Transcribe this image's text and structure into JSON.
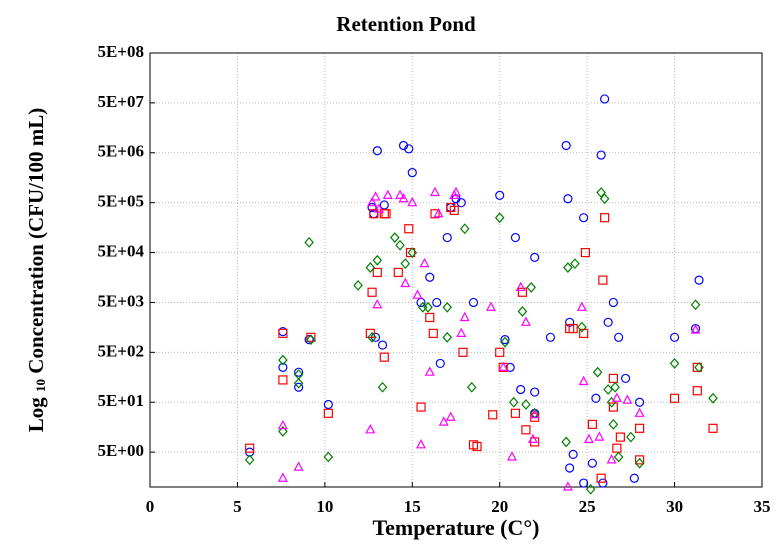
{
  "chart_data": {
    "type": "scatter",
    "title": "Retention Pond",
    "xlabel": "Temperature (C°)",
    "ylabel_prefix": "Log",
    "ylabel_subscript": "10",
    "ylabel_rest": "Concentration (CFU/100 mL)",
    "log_y": true,
    "grid": true,
    "xlim": [
      0,
      35
    ],
    "xticks": [
      0,
      5,
      10,
      15,
      20,
      25,
      30,
      35
    ],
    "ylim": [
      1,
      500000000
    ],
    "yticks": [
      {
        "value": 5,
        "label": "5E+00"
      },
      {
        "value": 50,
        "label": "5E+01"
      },
      {
        "value": 500,
        "label": "5E+02"
      },
      {
        "value": 5000,
        "label": "5E+03"
      },
      {
        "value": 50000,
        "label": "5E+04"
      },
      {
        "value": 500000,
        "label": "5E+05"
      },
      {
        "value": 5000000,
        "label": "5E+06"
      },
      {
        "value": 50000000,
        "label": "5E+07"
      },
      {
        "value": 500000000,
        "label": "5E+08"
      }
    ],
    "series": [
      {
        "color": "#0000ff",
        "marker": "circle",
        "x": [
          5.7,
          7.6,
          7.6,
          8.5,
          8.5,
          9.1,
          10.2,
          12.7,
          12.8,
          12.9,
          13.0,
          13.3,
          13.4,
          14.5,
          14.8,
          15.0,
          15.5,
          16.0,
          16.4,
          16.6,
          17.0,
          17.2,
          17.5,
          17.8,
          18.5,
          20.0,
          20.3,
          20.6,
          20.9,
          21.2,
          22.0,
          22.0,
          22.0,
          22.9,
          23.8,
          23.9,
          24.0,
          24.0,
          24.2,
          24.8,
          24.8,
          25.3,
          25.5,
          25.8,
          25.9,
          26.0,
          26.2,
          26.5,
          26.8,
          27.2,
          27.7,
          28.0,
          30.0,
          31.2,
          31.4
        ],
        "values": [
          5,
          1300,
          250,
          200,
          100,
          900,
          45,
          400000,
          300000,
          1000,
          5500000,
          700,
          450000,
          7000000,
          6000000,
          2000000,
          5000,
          16000,
          5000,
          300,
          100000,
          400000,
          600000,
          500000,
          5000,
          700000,
          900,
          250,
          100000,
          90,
          40000,
          80,
          30,
          1000,
          7000000,
          600000,
          2000,
          2.4,
          4.5,
          250000,
          1.2,
          3,
          60,
          4500000,
          1.2,
          60000000,
          2000,
          5000,
          1000,
          150,
          1.5,
          50,
          1000,
          1500,
          14000
        ]
      },
      {
        "color": "#ff0000",
        "marker": "square",
        "x": [
          5.7,
          7.6,
          7.6,
          9.2,
          10.2,
          12.6,
          12.7,
          12.8,
          13.0,
          13.4,
          13.5,
          13.4,
          14.2,
          14.8,
          14.9,
          15.5,
          16.0,
          16.2,
          16.3,
          17.2,
          17.4,
          17.9,
          18.5,
          18.7,
          19.6,
          20.0,
          20.2,
          20.9,
          21.3,
          21.5,
          22.0,
          22.0,
          24.0,
          24.2,
          24.8,
          24.9,
          25.3,
          25.9,
          26.0,
          25.8,
          26.5,
          26.5,
          26.7,
          26.9,
          28.0,
          28.0,
          30.0,
          31.3,
          31.3,
          32.2
        ],
        "values": [
          6,
          1200,
          140,
          1000,
          30,
          1200,
          8000,
          300000,
          20000,
          300000,
          300000,
          400,
          20000,
          150000,
          50000,
          40,
          2500,
          1200,
          300000,
          400000,
          350000,
          500,
          7,
          6.5,
          28,
          500,
          250,
          30,
          8000,
          14,
          25,
          8,
          1500,
          1500,
          1200,
          50000,
          18,
          14000,
          250000,
          1.5,
          150,
          40,
          6,
          10,
          15,
          3.5,
          60,
          250,
          85,
          15
        ]
      },
      {
        "color": "#008000",
        "marker": "diamond",
        "x": [
          5.7,
          7.6,
          7.6,
          8.5,
          8.5,
          9.2,
          9.1,
          10.2,
          11.9,
          12.6,
          12.7,
          13.0,
          13.3,
          14.0,
          14.3,
          14.6,
          15.0,
          15.6,
          15.9,
          17.0,
          17.0,
          18.0,
          18.4,
          20.0,
          20.3,
          20.8,
          21.3,
          21.5,
          21.8,
          22.0,
          23.9,
          23.8,
          24.3,
          24.7,
          25.2,
          25.6,
          25.8,
          26.0,
          26.2,
          26.4,
          26.5,
          26.6,
          26.8,
          27.5,
          28.0,
          30.0,
          31.2,
          31.4,
          32.2
        ],
        "values": [
          3.5,
          350,
          13,
          120,
          180,
          900,
          80000,
          4,
          11000,
          25000,
          1000,
          35000,
          100,
          100000,
          70000,
          30000,
          50000,
          4000,
          4000,
          1000,
          4000,
          150000,
          100,
          250000,
          800,
          50,
          3300,
          45,
          10000,
          30,
          25000,
          8,
          30000,
          1600,
          0.9,
          200,
          800000,
          600000,
          90,
          50,
          18,
          100,
          4,
          10,
          3,
          300,
          4500,
          250,
          60
        ]
      },
      {
        "color": "#ff00ff",
        "marker": "triangle",
        "x": [
          7.6,
          7.6,
          8.5,
          12.6,
          12.7,
          12.9,
          13.0,
          13.1,
          13.6,
          14.3,
          14.5,
          14.6,
          15.0,
          15.3,
          15.5,
          15.7,
          16.0,
          16.3,
          16.5,
          16.8,
          17.2,
          17.4,
          17.5,
          17.8,
          18.0,
          19.5,
          20.2,
          20.7,
          21.2,
          21.5,
          22.0,
          21.9,
          23.9,
          24.7,
          24.8,
          25.1,
          25.7,
          26.4,
          26.7,
          27.3,
          28.0,
          31.2
        ],
        "values": [
          1.5,
          17,
          2.5,
          14,
          500000,
          650000,
          4500,
          370000,
          700000,
          700000,
          600000,
          12000,
          500000,
          7000,
          7,
          30000,
          200,
          800000,
          300000,
          20,
          25,
          700000,
          800000,
          1200,
          2500,
          4000,
          250,
          4,
          10000,
          2000,
          28,
          9,
          1,
          4000,
          130,
          9,
          10,
          3.5,
          60,
          55,
          30,
          1400
        ]
      }
    ]
  }
}
